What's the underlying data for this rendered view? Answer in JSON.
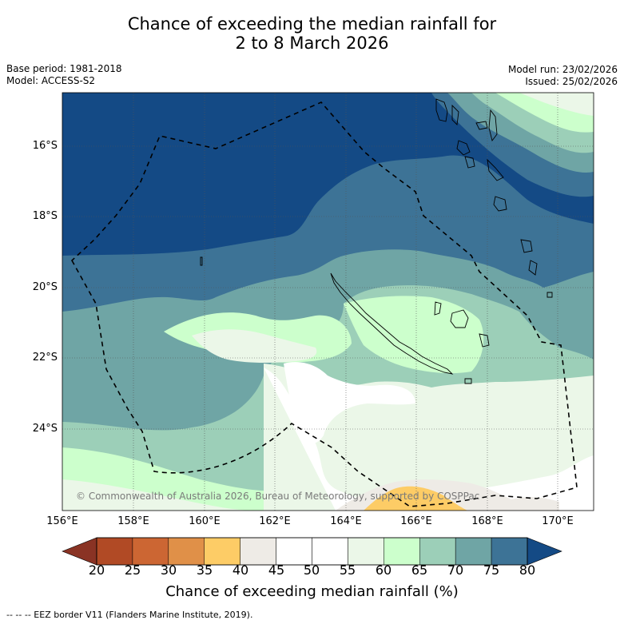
{
  "title": {
    "line1": "Chance of exceeding the median rainfall for",
    "line2": "2 to 8 March 2026"
  },
  "meta": {
    "base_period": "Base period: 1981-2018",
    "model": "Model: ACCESS-S2",
    "model_run": "Model run: 23/02/2026",
    "issued": "Issued: 25/02/2026"
  },
  "map": {
    "lat_labels": [
      "16°S",
      "18°S",
      "20°S",
      "22°S",
      "24°S"
    ],
    "lon_labels": [
      "156°E",
      "158°E",
      "160°E",
      "162°E",
      "164°E",
      "166°E",
      "168°E",
      "170°E"
    ],
    "copyright": "© Commonwealth of Australia 2026, Bureau of Meteorology, supported by COSPPac"
  },
  "colorbar": {
    "ticks": [
      "20",
      "25",
      "30",
      "35",
      "40",
      "45",
      "50",
      "55",
      "60",
      "65",
      "70",
      "75",
      "80"
    ],
    "colors": [
      "#8a3324",
      "#b14a25",
      "#cc6633",
      "#e09048",
      "#fdcc66",
      "#eeebe6",
      "#ffffff",
      "#ffffff",
      "#ebf7e8",
      "#ccffcc",
      "#9ccfb8",
      "#6fa5a5",
      "#3d7396",
      "#144a85"
    ],
    "title": "Chance of exceeding median rainfall (%)"
  },
  "legend": {
    "eez": "--  --  -- EEZ border V11 (Flanders Marine Institute, 2019)."
  }
}
